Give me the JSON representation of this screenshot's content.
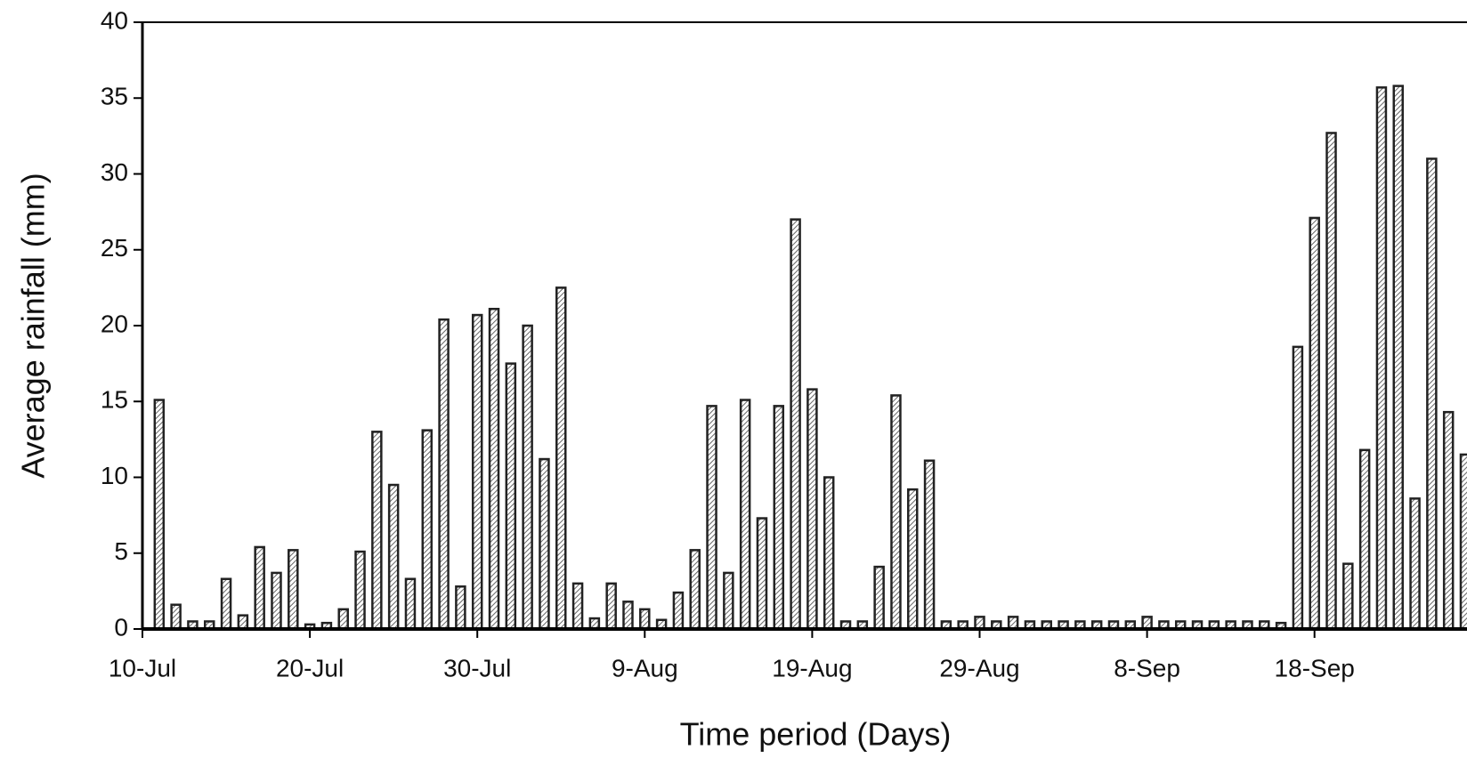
{
  "chart_data": {
    "type": "bar",
    "x_label": "Time period (Days)",
    "y_label": "Average rainfall (mm)",
    "categories": [
      "10-Jul",
      null,
      null,
      null,
      null,
      null,
      null,
      null,
      null,
      null,
      "20-Jul",
      null,
      null,
      null,
      null,
      null,
      null,
      null,
      null,
      null,
      "30-Jul",
      null,
      null,
      null,
      null,
      null,
      null,
      null,
      null,
      null,
      "9-Aug",
      null,
      null,
      null,
      null,
      null,
      null,
      null,
      null,
      null,
      "19-Aug",
      null,
      null,
      null,
      null,
      null,
      null,
      null,
      null,
      null,
      "29-Aug",
      null,
      null,
      null,
      null,
      null,
      null,
      null,
      null,
      null,
      "8-Sep",
      null,
      null,
      null,
      null,
      null,
      null,
      null,
      null,
      null,
      "18-Sep",
      null,
      null,
      null,
      null,
      null,
      null,
      null,
      null,
      null
    ],
    "values": [
      null,
      15.1,
      1.6,
      0.5,
      0.5,
      3.3,
      0.9,
      5.4,
      3.7,
      5.2,
      0.3,
      0.4,
      1.3,
      5.1,
      13,
      9.5,
      3.3,
      13.1,
      20.4,
      2.8,
      20.7,
      21.1,
      17.5,
      20,
      11.2,
      22.5,
      3,
      0.7,
      3,
      1.8,
      1.3,
      0.6,
      2.4,
      5.2,
      14.7,
      3.7,
      15.1,
      7.3,
      14.7,
      27,
      15.8,
      10,
      0.5,
      0.5,
      4.1,
      15.4,
      9.2,
      11.1,
      0.5,
      0.5,
      0.8,
      0.5,
      0.8,
      0.5,
      0.5,
      0.5,
      0.5,
      0.5,
      0.5,
      0.5,
      0.8,
      0.5,
      0.5,
      0.5,
      0.5,
      0.5,
      0.5,
      0.5,
      0.4,
      18.6,
      27.1,
      32.7,
      4.3,
      11.8,
      35.7,
      35.8,
      8.6,
      31,
      14.3,
      11.5
    ],
    "color": "#222222",
    "ylim": [
      0,
      40
    ],
    "yticks": [
      0,
      5,
      10,
      15,
      20,
      25,
      30,
      35,
      40
    ]
  }
}
